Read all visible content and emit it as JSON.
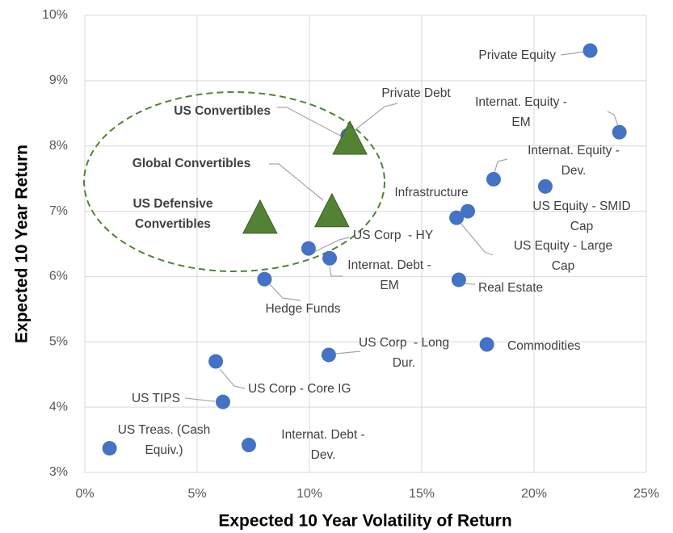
{
  "chart_data": {
    "type": "scatter",
    "x_label": "Expected 10 Year Volatility of Return",
    "y_label": "Expected 10 Year Return",
    "xlim": [
      0,
      25
    ],
    "ylim": [
      3,
      10
    ],
    "xticks": [
      {
        "value": 0,
        "label": "0%"
      },
      {
        "value": 5,
        "label": "5%"
      },
      {
        "value": 10,
        "label": "10%"
      },
      {
        "value": 15,
        "label": "15%"
      },
      {
        "value": 20,
        "label": "20%"
      },
      {
        "value": 25,
        "label": "25%"
      }
    ],
    "yticks": [
      {
        "value": 3,
        "label": "3%"
      },
      {
        "value": 4,
        "label": "4%"
      },
      {
        "value": 5,
        "label": "5%"
      },
      {
        "value": 6,
        "label": "6%"
      },
      {
        "value": 7,
        "label": "7%"
      },
      {
        "value": 8,
        "label": "8%"
      },
      {
        "value": 9,
        "label": "9%"
      },
      {
        "value": 10,
        "label": "10%"
      }
    ],
    "grid": true,
    "series": [
      {
        "color": "#4472c4",
        "marker": "circle",
        "points": [
          {
            "label": [
              "Private Equity"
            ],
            "x": 22.5,
            "y": 9.46
          },
          {
            "label": [
              "Internat. Equity -",
              "EM"
            ],
            "x": 23.8,
            "y": 8.21
          },
          {
            "label": [
              "Private Debt"
            ],
            "x": 11.7,
            "y": 8.16
          },
          {
            "label": [
              "Internat. Equity -",
              "Dev."
            ],
            "x": 18.2,
            "y": 7.49
          },
          {
            "label": [
              "US Equity - SMID",
              "Cap"
            ],
            "x": 20.5,
            "y": 7.38
          },
          {
            "label": [
              "Infrastructure"
            ],
            "x": 17.05,
            "y": 7.0
          },
          {
            "label": [
              "US Equity - Large",
              "Cap"
            ],
            "x": 16.55,
            "y": 6.9
          },
          {
            "label": [
              "US Corp  - HY"
            ],
            "x": 9.96,
            "y": 6.43
          },
          {
            "label": [
              "Internat. Debt -",
              "EM"
            ],
            "x": 10.9,
            "y": 6.28
          },
          {
            "label": [
              "Hedge Funds"
            ],
            "x": 8.0,
            "y": 5.96
          },
          {
            "label": [
              "Real Estate"
            ],
            "x": 16.65,
            "y": 5.95
          },
          {
            "label": [
              "Commodities"
            ],
            "x": 17.9,
            "y": 4.96
          },
          {
            "label": [
              "US Corp  - Long",
              "Dur."
            ],
            "x": 10.86,
            "y": 4.8
          },
          {
            "label": [
              "US Corp - Core IG"
            ],
            "x": 5.83,
            "y": 4.7
          },
          {
            "label": [
              "US TIPS"
            ],
            "x": 6.15,
            "y": 4.08
          },
          {
            "label": [
              "US Treas. (Cash",
              "Equiv.)"
            ],
            "x": 1.1,
            "y": 3.37
          },
          {
            "label": [
              "Internat. Debt -",
              "Dev."
            ],
            "x": 7.3,
            "y": 3.42
          }
        ]
      },
      {
        "color": "#548235",
        "marker": "triangle",
        "bold_labels": true,
        "points": [
          {
            "label": [
              "US Convertibles"
            ],
            "x": 11.8,
            "y": 8.07
          },
          {
            "label": [
              "Global Convertibles"
            ],
            "x": 11.0,
            "y": 6.96
          },
          {
            "label": [
              "US Defensive",
              "Convertibles"
            ],
            "x": 7.8,
            "y": 6.86
          }
        ]
      }
    ]
  }
}
